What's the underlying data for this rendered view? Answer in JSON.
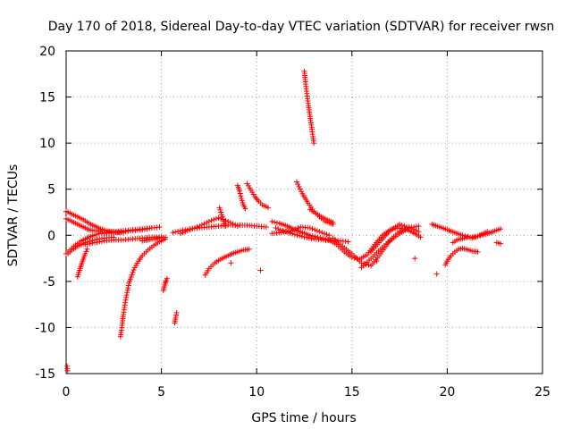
{
  "chart_data": {
    "type": "scatter",
    "title": "Day 170 of 2018, Sidereal Day-to-day VTEC variation (SDTVAR) for receiver rwsn",
    "xlabel": "GPS time / hours",
    "ylabel": "SDTVAR / TECUs",
    "xlim": [
      0,
      25
    ],
    "ylim": [
      -15,
      20
    ],
    "xticks": [
      0,
      5,
      10,
      15,
      20,
      25
    ],
    "yticks": [
      -15,
      -10,
      -5,
      0,
      5,
      10,
      15,
      20
    ],
    "grid": true,
    "marker": "+",
    "series": [
      {
        "name": "SDTVAR",
        "color": "#ff0000",
        "segments": [
          {
            "x": [
              0.05,
              0.08
            ],
            "y": [
              -14.2,
              -14.7
            ]
          },
          {
            "x": [
              0.0,
              0.3,
              0.6,
              0.9,
              1.2,
              1.5,
              1.8,
              2.1,
              2.4,
              2.7,
              3.0
            ],
            "y": [
              2.6,
              2.3,
              2.0,
              1.7,
              1.3,
              1.0,
              0.7,
              0.5,
              0.4,
              0.3,
              0.3
            ]
          },
          {
            "x": [
              0.0,
              0.4,
              0.8,
              1.2,
              1.6,
              2.0,
              2.5,
              3.0,
              3.5,
              4.0,
              4.5
            ],
            "y": [
              -2.0,
              -1.2,
              -0.6,
              -0.2,
              0.1,
              0.3,
              0.4,
              0.5,
              0.6,
              0.7,
              0.8
            ]
          },
          {
            "x": [
              0.0,
              0.3,
              0.6,
              0.9,
              1.2,
              1.5,
              1.8
            ],
            "y": [
              1.8,
              1.5,
              1.2,
              0.9,
              0.6,
              0.5,
              0.5
            ]
          },
          {
            "x": [
              0.1,
              0.3,
              0.6,
              1.0,
              1.5,
              2.0,
              2.5
            ],
            "y": [
              -2.0,
              -1.6,
              -1.2,
              -0.8,
              -0.5,
              -0.3,
              -0.2
            ]
          },
          {
            "x": [
              0.6,
              0.7,
              0.8,
              0.9,
              1.0,
              1.1
            ],
            "y": [
              -4.5,
              -3.8,
              -3.2,
              -2.6,
              -2.0,
              -1.5
            ]
          },
          {
            "x": [
              1.0,
              1.5,
              2.0,
              2.5,
              3.0,
              3.5,
              4.0,
              4.5,
              5.0
            ],
            "y": [
              -1.0,
              -0.8,
              -0.6,
              -0.5,
              -0.5,
              -0.4,
              -0.3,
              -0.2,
              -0.2
            ]
          },
          {
            "x": [
              2.0,
              2.5,
              3.0,
              3.5,
              4.0,
              4.5,
              4.9
            ],
            "y": [
              0.2,
              0.3,
              0.4,
              0.5,
              0.6,
              0.8,
              0.9
            ]
          },
          {
            "x": [
              2.85,
              2.9,
              2.95,
              3.0,
              3.1,
              3.2,
              3.3,
              3.45,
              3.6,
              3.8,
              4.0,
              4.3,
              4.6,
              4.9,
              5.2
            ],
            "y": [
              -11.0,
              -10.3,
              -9.5,
              -8.6,
              -7.3,
              -6.2,
              -5.2,
              -4.3,
              -3.5,
              -2.8,
              -2.2,
              -1.6,
              -1.1,
              -0.7,
              -0.4
            ]
          },
          {
            "x": [
              4.0,
              4.3,
              4.6,
              4.9,
              5.2
            ],
            "y": [
              -0.6,
              -0.5,
              -0.4,
              -0.3,
              -0.2
            ]
          },
          {
            "x": [
              5.1,
              5.15,
              5.2,
              5.25,
              5.3
            ],
            "y": [
              -6.0,
              -5.6,
              -5.2,
              -4.9,
              -4.7
            ]
          },
          {
            "x": [
              5.7,
              5.75,
              5.8
            ],
            "y": [
              -9.5,
              -8.9,
              -8.4
            ]
          },
          {
            "x": [
              5.6,
              6.0,
              6.5,
              7.0,
              7.5,
              8.0,
              8.5,
              9.0,
              9.5,
              10.0,
              10.5
            ],
            "y": [
              0.3,
              0.5,
              0.7,
              0.8,
              0.9,
              1.0,
              1.1,
              1.1,
              1.1,
              1.0,
              0.9
            ]
          },
          {
            "x": [
              6.0,
              6.5,
              7.0,
              7.5,
              8.0,
              8.5,
              9.0
            ],
            "y": [
              0.2,
              0.6,
              1.0,
              1.5,
              1.9,
              1.5,
              1.0
            ]
          },
          {
            "x": [
              7.3,
              7.5,
              7.8,
              8.1,
              8.4,
              8.7,
              9.0,
              9.3,
              9.6
            ],
            "y": [
              -4.3,
              -3.6,
              -3.0,
              -2.6,
              -2.3,
              -2.0,
              -1.8,
              -1.6,
              -1.5
            ]
          },
          {
            "x": [
              8.05,
              8.2,
              8.35
            ],
            "y": [
              3.0,
              2.0,
              1.0
            ]
          },
          {
            "x": [
              8.65
            ],
            "y": [
              -3.0
            ]
          },
          {
            "x": [
              9.0,
              9.1,
              9.2,
              9.3,
              9.4
            ],
            "y": [
              5.4,
              4.8,
              4.0,
              3.3,
              2.9
            ]
          },
          {
            "x": [
              9.5,
              9.7,
              9.9,
              10.1,
              10.3,
              10.6
            ],
            "y": [
              5.6,
              4.9,
              4.2,
              3.7,
              3.3,
              3.0
            ]
          },
          {
            "x": [
              10.2
            ],
            "y": [
              -3.8
            ]
          },
          {
            "x": [
              10.8,
              11.2,
              11.6,
              12.0,
              12.4,
              12.8,
              13.2,
              13.6,
              14.0,
              14.4,
              14.8
            ],
            "y": [
              1.5,
              1.3,
              1.0,
              0.6,
              0.3,
              0.0,
              -0.2,
              -0.4,
              -0.5,
              -0.6,
              -0.7
            ]
          },
          {
            "x": [
              10.8,
              11.3,
              11.8,
              12.3,
              12.8,
              13.3,
              13.8
            ],
            "y": [
              0.2,
              0.3,
              0.5,
              0.9,
              0.8,
              0.4,
              0.0
            ]
          },
          {
            "x": [
              11.0,
              11.5,
              12.0,
              12.5,
              13.0,
              13.5,
              14.0
            ],
            "y": [
              0.8,
              0.4,
              0.1,
              -0.2,
              -0.4,
              -0.5,
              -0.6
            ]
          },
          {
            "x": [
              12.1,
              12.4,
              12.7,
              13.0,
              13.3,
              13.6,
              14.0
            ],
            "y": [
              5.8,
              4.5,
              3.5,
              2.6,
              2.0,
              1.5,
              1.2
            ]
          },
          {
            "x": [
              12.8,
              13.1,
              13.4,
              13.7,
              14.0
            ],
            "y": [
              2.8,
              2.4,
              2.0,
              1.7,
              1.4
            ]
          },
          {
            "x": [
              12.5,
              12.55,
              12.6,
              12.65,
              12.7,
              12.75,
              12.8,
              12.85,
              12.9,
              12.95,
              13.0
            ],
            "y": [
              17.8,
              16.9,
              15.9,
              15.1,
              14.3,
              13.6,
              12.9,
              12.2,
              11.5,
              10.7,
              10.0
            ]
          },
          {
            "x": [
              13.8,
              14.2,
              14.6,
              15.0,
              15.4,
              15.8,
              16.2,
              16.6,
              17.0,
              17.4,
              17.8,
              18.2,
              18.6
            ],
            "y": [
              -0.5,
              -1.0,
              -1.8,
              -2.4,
              -2.6,
              -2.1,
              -1.0,
              0.0,
              0.6,
              0.8,
              0.7,
              0.3,
              -0.2
            ]
          },
          {
            "x": [
              14.0,
              14.5,
              15.0,
              15.5,
              16.0,
              16.5,
              17.0,
              17.5,
              18.0,
              18.5
            ],
            "y": [
              -0.3,
              -1.2,
              -2.0,
              -3.0,
              -3.3,
              -2.0,
              -0.5,
              0.4,
              0.9,
              0.4
            ]
          },
          {
            "x": [
              15.5,
              16.0,
              16.5,
              17.0,
              17.5,
              18.0,
              18.5
            ],
            "y": [
              -3.5,
              -2.5,
              -1.5,
              -0.6,
              0.2,
              0.8,
              1.0
            ]
          },
          {
            "x": [
              16.3
            ],
            "y": [
              -2.8
            ]
          },
          {
            "x": [
              16.0,
              16.5,
              17.0,
              17.5,
              18.0
            ],
            "y": [
              -1.8,
              -0.6,
              0.5,
              1.2,
              0.8
            ]
          },
          {
            "x": [
              18.3
            ],
            "y": [
              -2.5
            ]
          },
          {
            "x": [
              19.2,
              19.6,
              20.0,
              20.4,
              20.8,
              21.2,
              21.6,
              22.0,
              22.4,
              22.8
            ],
            "y": [
              1.2,
              0.9,
              0.6,
              0.3,
              0.0,
              -0.2,
              -0.1,
              0.1,
              0.4,
              0.7
            ]
          },
          {
            "x": [
              19.45
            ],
            "y": [
              -4.2
            ]
          },
          {
            "x": [
              19.9,
              20.0,
              20.2,
              20.4,
              20.6,
              20.8,
              21.0,
              21.3,
              21.6
            ],
            "y": [
              -3.2,
              -2.8,
              -2.2,
              -1.8,
              -1.5,
              -1.4,
              -1.5,
              -1.7,
              -1.8
            ]
          },
          {
            "x": [
              20.3,
              20.5,
              20.7,
              20.9,
              21.1,
              21.3,
              21.5,
              21.8,
              22.1
            ],
            "y": [
              -0.8,
              -0.5,
              -0.4,
              -0.3,
              -0.2,
              -0.3,
              -0.2,
              0.1,
              0.4
            ]
          },
          {
            "x": [
              22.6,
              22.8
            ],
            "y": [
              -0.8,
              -0.9
            ]
          }
        ]
      }
    ]
  }
}
